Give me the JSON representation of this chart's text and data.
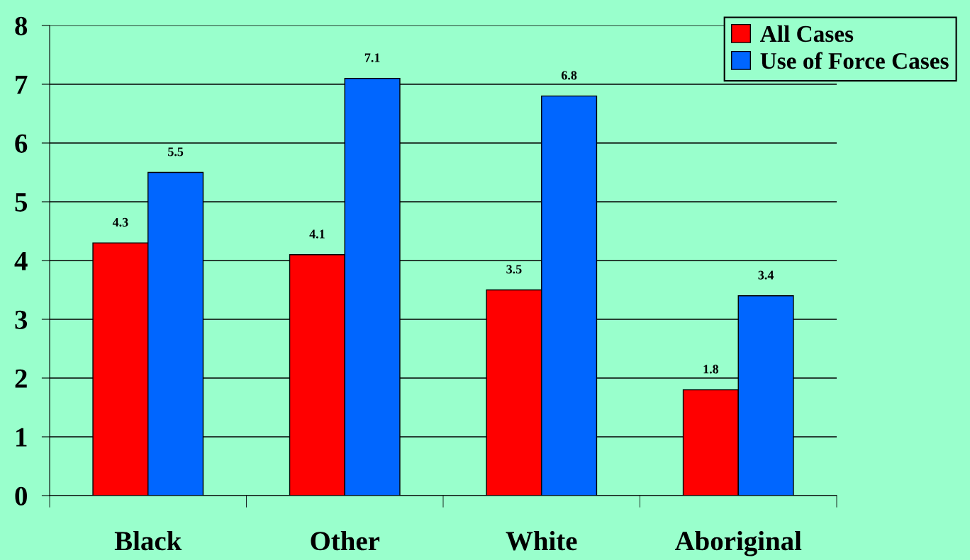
{
  "chart_data": {
    "type": "bar",
    "categories": [
      "Black",
      "Other",
      "White",
      "Aboriginal"
    ],
    "series": [
      {
        "name": "All Cases",
        "color": "#ff0000",
        "values": [
          4.3,
          4.1,
          3.5,
          1.8
        ]
      },
      {
        "name": "Use of Force Cases",
        "color": "#0066ff",
        "values": [
          5.5,
          7.1,
          6.8,
          3.4
        ]
      }
    ],
    "ylim": [
      0,
      8
    ],
    "yticks": [
      0,
      1,
      2,
      3,
      4,
      5,
      6,
      7,
      8
    ],
    "grid": "y",
    "legend": "top right",
    "data_labels": true
  }
}
